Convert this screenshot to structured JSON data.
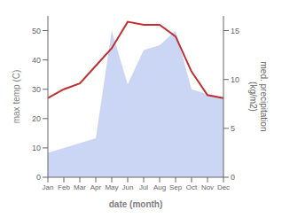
{
  "chart_data": {
    "type": "line",
    "xlabel": "date (month)",
    "ylabel": "max temp (C)",
    "y2label": "med. precipitation\n(kg/m2)",
    "categories": [
      "Jan",
      "Feb",
      "Mar",
      "Apr",
      "May",
      "Jun",
      "Jul",
      "Aug",
      "Sep",
      "Oct",
      "Nov",
      "Dec"
    ],
    "series": [
      {
        "type": "area",
        "color": "#b8c8f0",
        "axis": "y2",
        "values": [
          2.5,
          3.0,
          3.5,
          4.0,
          15.0,
          9.5,
          13.0,
          13.5,
          15.0,
          9.0,
          8.5,
          8.0
        ]
      },
      {
        "type": "line",
        "color": "#c03030",
        "values": [
          27,
          30,
          32,
          38,
          44,
          53,
          52,
          52,
          48,
          36,
          28,
          27
        ]
      }
    ],
    "ylim": [
      0,
      55
    ],
    "yticks": [
      0,
      10,
      20,
      30,
      40,
      50
    ],
    "y2lim": [
      0,
      16.5
    ],
    "y2ticks": [
      0,
      5,
      10,
      15
    ],
    "grid": false
  }
}
